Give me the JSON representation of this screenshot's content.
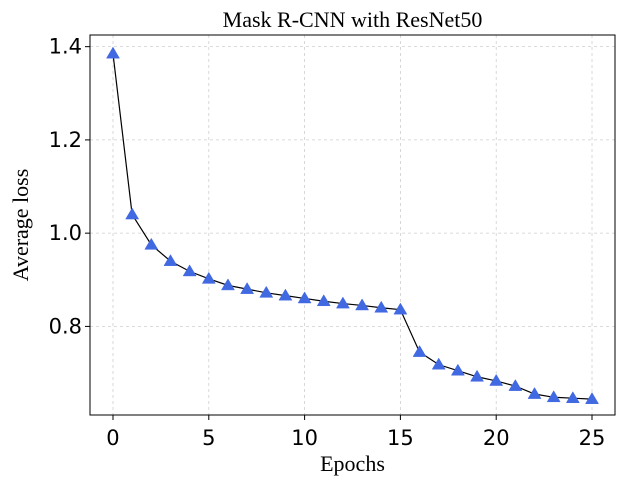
{
  "chart_data": {
    "type": "line",
    "title": "Mask R-CNN with ResNet50",
    "xlabel": "Epochs",
    "ylabel": "Average loss",
    "xlim": [
      -1.2,
      26.2
    ],
    "ylim": [
      0.61,
      1.425
    ],
    "xticks": [
      0,
      5,
      10,
      15,
      20,
      25
    ],
    "yticks": [
      0.8,
      1.0,
      1.2,
      1.4
    ],
    "xtick_labels": [
      "0",
      "5",
      "10",
      "15",
      "20",
      "25"
    ],
    "ytick_labels": [
      "0.8",
      "1.0",
      "1.2",
      "1.4"
    ],
    "grid": true,
    "marker": "triangle-up",
    "colors": {
      "line": "#000000",
      "marker": "#4169e1"
    },
    "series": [
      {
        "x": [
          0,
          1,
          2,
          3,
          4,
          5,
          6,
          7,
          8,
          9,
          10,
          11,
          12,
          13,
          14,
          15,
          16,
          17,
          18,
          19,
          20,
          21,
          22,
          23,
          24,
          25
        ],
        "values": [
          1.385,
          1.04,
          0.975,
          0.94,
          0.918,
          0.902,
          0.888,
          0.88,
          0.872,
          0.866,
          0.86,
          0.854,
          0.849,
          0.845,
          0.84,
          0.836,
          0.745,
          0.718,
          0.705,
          0.692,
          0.683,
          0.672,
          0.655,
          0.648,
          0.646,
          0.644
        ]
      }
    ]
  }
}
